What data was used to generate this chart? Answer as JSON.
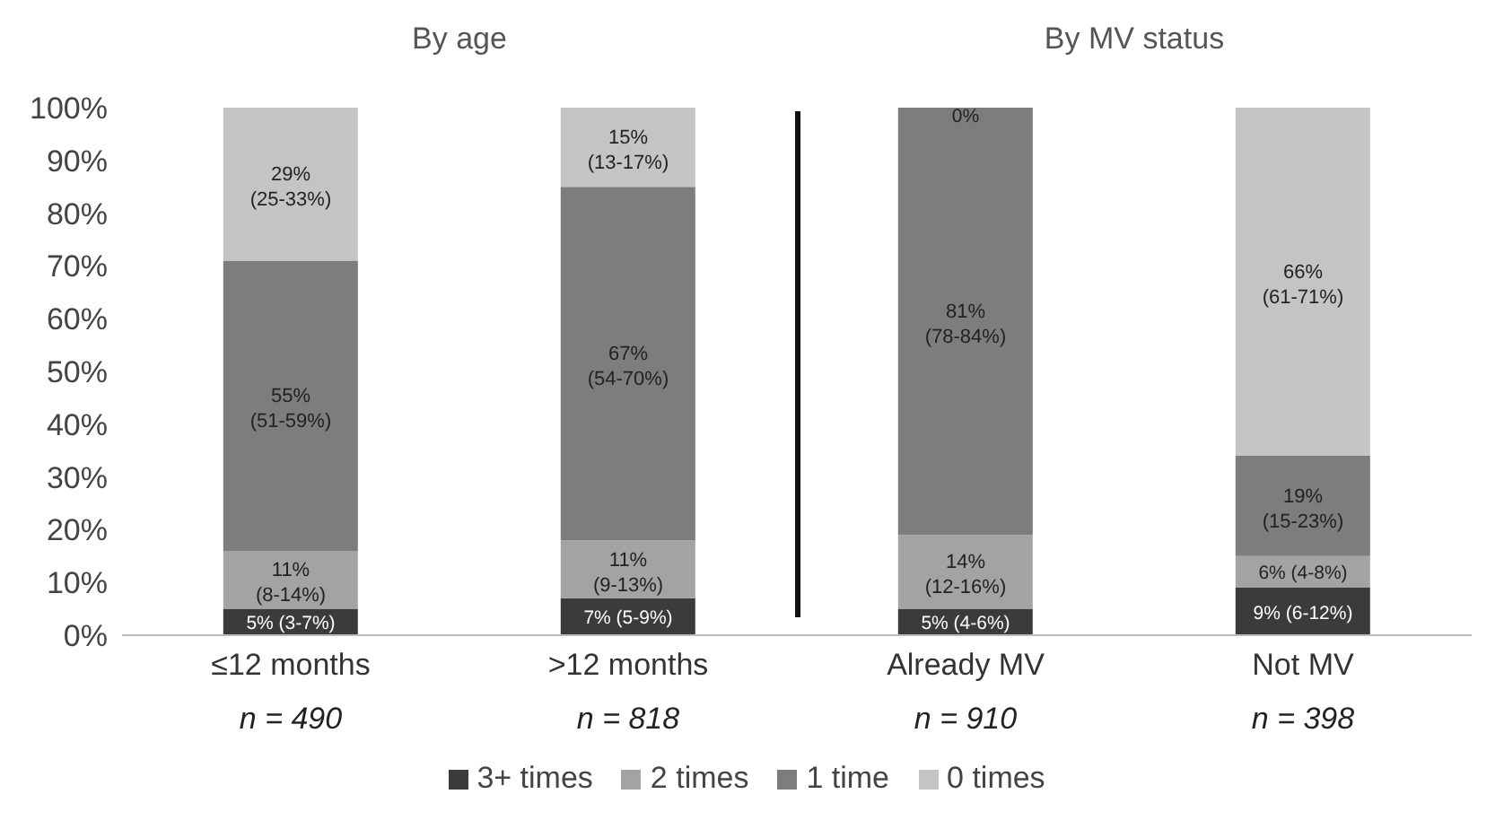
{
  "chart_data": {
    "type": "bar",
    "stacked": true,
    "categories": [
      "≤12 months",
      ">12 months",
      "Already MV",
      "Not MV"
    ],
    "series": [
      {
        "name": "3+ times",
        "color": "#3b3b3b",
        "values": [
          5,
          7,
          5,
          9
        ],
        "value_labels": [
          "5% (3-7%)",
          "7% (5-9%)",
          "5% (4-6%)",
          "9% (6-12%)"
        ]
      },
      {
        "name": "2 times",
        "color": "#a3a3a3",
        "values": [
          11,
          11,
          14,
          6
        ],
        "value_labels": [
          "11% (8-14%)",
          "11% (9-13%)",
          "14% (12-16%)",
          "6% (4-8%)"
        ]
      },
      {
        "name": "1 time",
        "color": "#7d7d7d",
        "values": [
          55,
          67,
          81,
          19
        ],
        "value_labels": [
          "55% (51-59%)",
          "67% (54-70%)",
          "81% (78-84%)",
          "19% (15-23%)"
        ]
      },
      {
        "name": "0 times",
        "color": "#c4c4c4",
        "values": [
          29,
          15,
          0,
          66
        ],
        "value_labels": [
          "29% (25-33%)",
          "15% (13-17%)",
          "0%",
          "66% (61-71%)"
        ]
      }
    ],
    "ylim": [
      0,
      100
    ],
    "yticks": [
      {
        "value": 0,
        "label": "0%"
      },
      {
        "value": 10,
        "label": "10%"
      },
      {
        "value": 20,
        "label": "20%"
      },
      {
        "value": 30,
        "label": "30%"
      },
      {
        "value": 40,
        "label": "40%"
      },
      {
        "value": 50,
        "label": "50%"
      },
      {
        "value": 60,
        "label": "60%"
      },
      {
        "value": 70,
        "label": "70%"
      },
      {
        "value": 80,
        "label": "80%"
      },
      {
        "value": 90,
        "label": "90%"
      },
      {
        "value": 100,
        "label": "100%"
      }
    ],
    "grid": false,
    "legend": "bottom",
    "annotations": [
      "By age",
      "By MV status",
      "n = 490",
      "n = 818",
      "n = 910",
      "n = 398"
    ]
  }
}
